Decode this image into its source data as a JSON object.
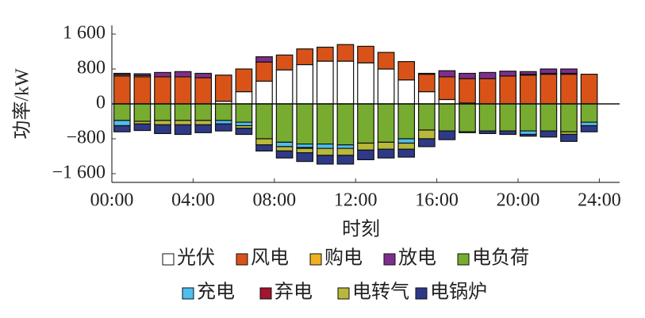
{
  "chart_data": {
    "type": "bar",
    "stacked": true,
    "x_label": "时刻",
    "y_label": "功率/kW",
    "x": [
      0.5,
      1.5,
      2.5,
      3.5,
      4.5,
      5.5,
      6.5,
      7.5,
      8.5,
      9.5,
      10.5,
      11.5,
      12.5,
      13.5,
      14.5,
      15.5,
      16.5,
      17.5,
      18.5,
      19.5,
      20.5,
      21.5,
      22.5,
      23.5
    ],
    "xlim": [
      0,
      25
    ],
    "xticks": [
      {
        "value": 0,
        "label": "00:00"
      },
      {
        "value": 4,
        "label": "04:00"
      },
      {
        "value": 8,
        "label": "08:00"
      },
      {
        "value": 12,
        "label": "12:00"
      },
      {
        "value": 16,
        "label": "16:00"
      },
      {
        "value": 20,
        "label": "20:00"
      },
      {
        "value": 24,
        "label": "24:00"
      }
    ],
    "ylim": [
      -1800,
      1800
    ],
    "yticks": [
      {
        "value": 1600,
        "label": "1 600"
      },
      {
        "value": 800,
        "label": "800"
      },
      {
        "value": 0,
        "label": "0"
      },
      {
        "value": -800,
        "label": "−800"
      },
      {
        "value": -1600,
        "label": "−1 600"
      }
    ],
    "series": [
      {
        "name": "光伏",
        "color": "#ffffff",
        "values": [
          0,
          0,
          0,
          0,
          0,
          60,
          280,
          520,
          780,
          900,
          980,
          980,
          940,
          800,
          550,
          280,
          100,
          20,
          0,
          0,
          0,
          0,
          0,
          0
        ]
      },
      {
        "name": "风电",
        "color": "#d95319",
        "values": [
          640,
          620,
          620,
          620,
          600,
          600,
          520,
          440,
          340,
          360,
          320,
          380,
          380,
          380,
          420,
          400,
          520,
          560,
          580,
          640,
          660,
          680,
          680,
          680
        ]
      },
      {
        "name": "购电",
        "color": "#edb120",
        "values": [
          30,
          30,
          0,
          0,
          0,
          0,
          0,
          0,
          0,
          0,
          0,
          0,
          0,
          0,
          0,
          20,
          0,
          0,
          0,
          0,
          20,
          20,
          20,
          0
        ]
      },
      {
        "name": "放电",
        "color": "#7e2f8e",
        "values": [
          30,
          40,
          100,
          120,
          100,
          0,
          0,
          120,
          0,
          0,
          0,
          0,
          0,
          0,
          0,
          0,
          140,
          120,
          140,
          110,
          60,
          100,
          100,
          0
        ]
      },
      {
        "name": "电负荷",
        "color": "#77ac30",
        "values": [
          -380,
          -400,
          -380,
          -380,
          -380,
          -380,
          -420,
          -800,
          -880,
          -920,
          -920,
          -940,
          -900,
          -880,
          -800,
          -600,
          -620,
          -640,
          -620,
          -620,
          -620,
          -620,
          -640,
          -420
        ]
      },
      {
        "name": "充电",
        "color": "#4dbeee",
        "values": [
          -120,
          0,
          0,
          0,
          0,
          -80,
          -80,
          0,
          -100,
          -80,
          -100,
          -80,
          0,
          0,
          -100,
          0,
          0,
          0,
          0,
          0,
          -80,
          0,
          0,
          -80
        ]
      },
      {
        "name": "弃电",
        "color": "#a2142f",
        "values": [
          0,
          0,
          0,
          0,
          0,
          0,
          0,
          0,
          0,
          -20,
          0,
          0,
          0,
          0,
          0,
          0,
          0,
          0,
          0,
          0,
          0,
          0,
          0,
          0
        ]
      },
      {
        "name": "电转气",
        "color": "#b8b83a",
        "values": [
          0,
          -60,
          -100,
          -100,
          -100,
          0,
          -60,
          -140,
          -100,
          -100,
          -160,
          -160,
          -160,
          -160,
          -140,
          -200,
          0,
          0,
          0,
          0,
          0,
          0,
          -60,
          0
        ]
      },
      {
        "name": "电锅炉",
        "color": "#2e3a87",
        "values": [
          -140,
          -150,
          -200,
          -220,
          -180,
          -160,
          -140,
          -140,
          -160,
          -200,
          -200,
          -200,
          -220,
          -200,
          -180,
          -180,
          -200,
          -20,
          -60,
          -80,
          -40,
          -140,
          -160,
          -140
        ]
      }
    ]
  }
}
